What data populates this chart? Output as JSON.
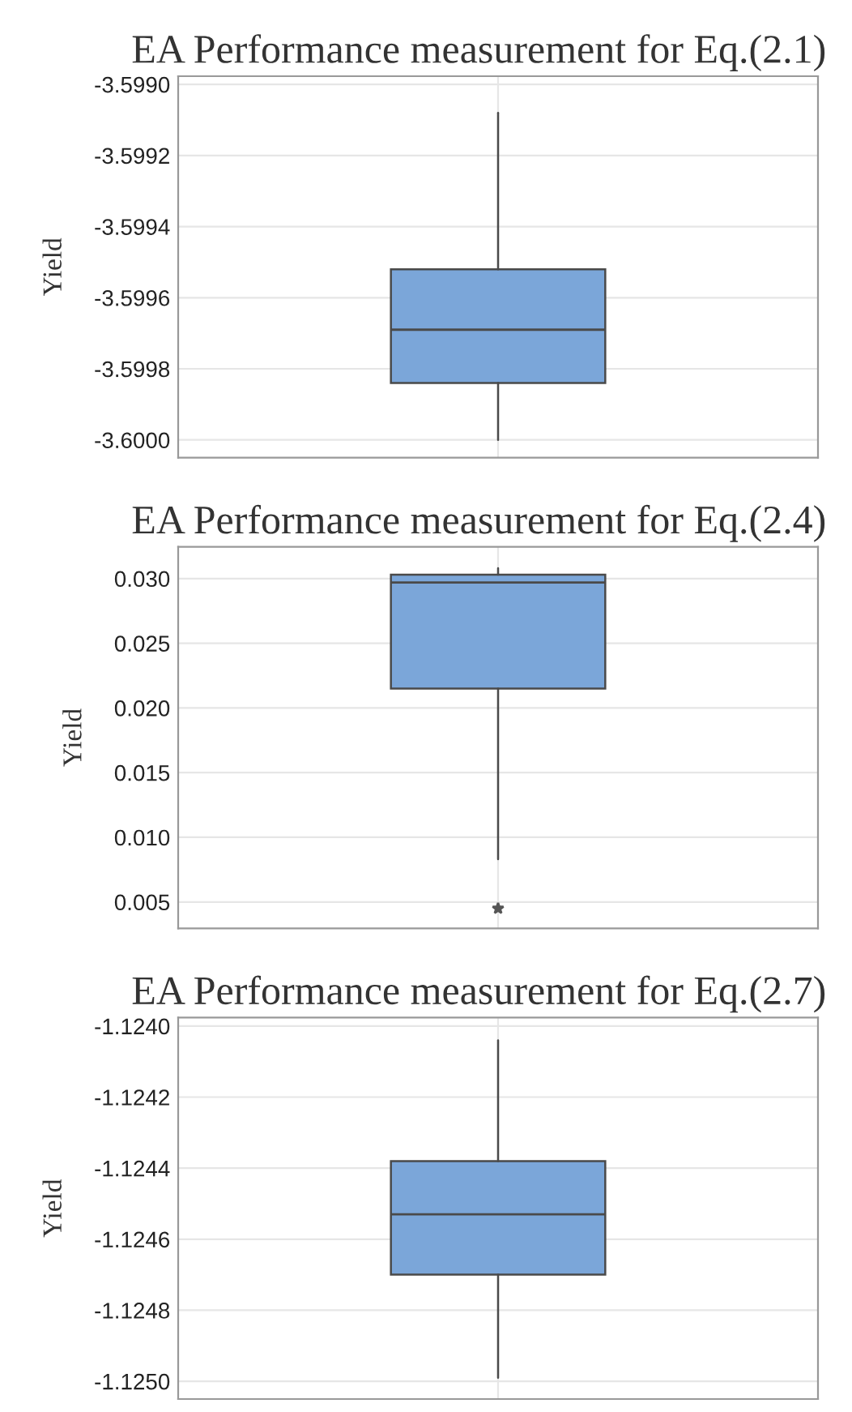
{
  "chart_data": [
    {
      "type": "box",
      "title": "EA Performance measurement for Eq.(2.1)",
      "ylabel": "Yield",
      "categories": [
        null
      ],
      "color": "#7ba6d9",
      "boxes": [
        {
          "low": -3.6,
          "q1": -3.59984,
          "median": -3.59969,
          "q3": -3.59952,
          "high": -3.59908
        }
      ],
      "ylim": [
        -3.60005,
        -3.598977
      ],
      "yticks": [
        {
          "value": -3.6,
          "label": "-3.6000"
        },
        {
          "value": -3.5998,
          "label": "-3.5998"
        },
        {
          "value": -3.5996,
          "label": "-3.5996"
        },
        {
          "value": -3.5994,
          "label": "-3.5994"
        },
        {
          "value": -3.5992,
          "label": "-3.5992"
        },
        {
          "value": -3.599,
          "label": "-3.5990"
        }
      ],
      "grid": true
    },
    {
      "type": "box",
      "title": "EA Performance measurement for Eq.(2.4)",
      "ylabel": "Yield",
      "categories": [
        null
      ],
      "color": "#7ba6d9",
      "boxes": [
        {
          "low": 0.0083,
          "q1": 0.0215,
          "median": 0.0297,
          "q3": 0.0303,
          "high": 0.0308,
          "outliers": [
            0.0045
          ]
        }
      ],
      "ylim": [
        0.00296,
        0.03245
      ],
      "yticks": [
        {
          "value": 0.005,
          "label": "0.005"
        },
        {
          "value": 0.01,
          "label": "0.010"
        },
        {
          "value": 0.015,
          "label": "0.015"
        },
        {
          "value": 0.02,
          "label": "0.020"
        },
        {
          "value": 0.025,
          "label": "0.025"
        },
        {
          "value": 0.03,
          "label": "0.030"
        }
      ],
      "grid": true
    },
    {
      "type": "box",
      "title": "EA Performance measurement for Eq.(2.7)",
      "ylabel": "Yield",
      "categories": [
        null
      ],
      "color": "#7ba6d9",
      "boxes": [
        {
          "low": -1.12499,
          "q1": -1.1247,
          "median": -1.12453,
          "q3": -1.12438,
          "high": -1.12404
        }
      ],
      "ylim": [
        -1.12505,
        -1.123976
      ],
      "yticks": [
        {
          "value": -1.125,
          "label": "-1.1250"
        },
        {
          "value": -1.1248,
          "label": "-1.1248"
        },
        {
          "value": -1.1246,
          "label": "-1.1246"
        },
        {
          "value": -1.1244,
          "label": "-1.1244"
        },
        {
          "value": -1.1242,
          "label": "-1.1242"
        },
        {
          "value": -1.124,
          "label": "-1.1240"
        }
      ],
      "grid": true
    }
  ]
}
